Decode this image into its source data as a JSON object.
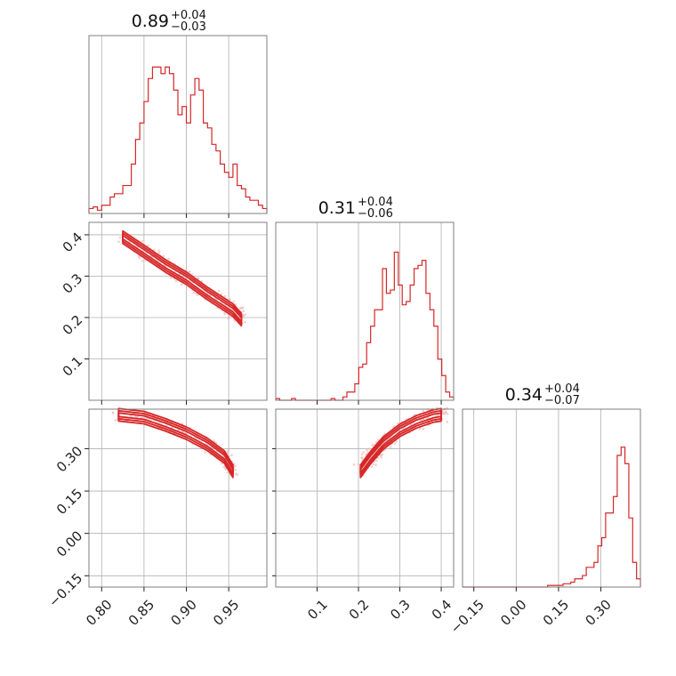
{
  "chart_data": {
    "type": "corner",
    "color": "#d62728",
    "parameters": [
      {
        "title": {
          "median": "0.89",
          "plus": "+0.04",
          "minus": "−0.03"
        },
        "range": [
          0.785,
          0.995
        ],
        "ticks": [
          {
            "v": 0.8,
            "label": "0.80"
          },
          {
            "v": 0.85,
            "label": "0.85"
          },
          {
            "v": 0.9,
            "label": "0.90"
          },
          {
            "v": 0.95,
            "label": "0.95"
          }
        ],
        "hist": [
          0.03,
          0.04,
          0.02,
          0.05,
          0.05,
          0.1,
          0.12,
          0.12,
          0.17,
          0.17,
          0.3,
          0.45,
          0.55,
          0.68,
          0.82,
          0.89,
          0.89,
          0.85,
          0.89,
          0.85,
          0.75,
          0.6,
          0.65,
          0.55,
          0.72,
          0.82,
          0.75,
          0.55,
          0.52,
          0.42,
          0.38,
          0.3,
          0.25,
          0.22,
          0.3,
          0.17,
          0.15,
          0.1,
          0.08,
          0.08,
          0.05,
          0.03
        ]
      },
      {
        "title": {
          "median": "0.31",
          "plus": "+0.04",
          "minus": "−0.06"
        },
        "range": [
          0.0,
          0.43
        ],
        "ticks": [
          {
            "v": 0.1,
            "label": "0.1"
          },
          {
            "v": 0.2,
            "label": "0.2"
          },
          {
            "v": 0.3,
            "label": "0.3"
          },
          {
            "v": 0.4,
            "label": "0.4"
          }
        ],
        "hist": [
          0.01,
          0.0,
          0.0,
          0.0,
          0.01,
          0.0,
          0.0,
          0.0,
          0.0,
          0.0,
          0.0,
          0.0,
          0.0,
          0.0,
          0.01,
          0.0,
          0.0,
          0.02,
          0.05,
          0.05,
          0.1,
          0.2,
          0.22,
          0.35,
          0.45,
          0.55,
          0.55,
          0.8,
          0.65,
          0.67,
          0.9,
          0.7,
          0.58,
          0.6,
          0.7,
          0.8,
          0.82,
          0.85,
          0.65,
          0.55,
          0.45,
          0.25,
          0.15,
          0.05,
          0.02
        ]
      },
      {
        "title": {
          "median": "0.34",
          "plus": "+0.04",
          "minus": "−0.07"
        },
        "range": [
          -0.19,
          0.44
        ],
        "ticks": [
          {
            "v": -0.15,
            "label": "−0.15"
          },
          {
            "v": 0.0,
            "label": "0.00"
          },
          {
            "v": 0.15,
            "label": "0.15"
          },
          {
            "v": 0.3,
            "label": "0.30"
          }
        ],
        "hist": [
          0.0,
          0.0,
          0.0,
          0.0,
          0.0,
          0.0,
          0.0,
          0.0,
          0.0,
          0.0,
          0.0,
          0.0,
          0.0,
          0.0,
          0.0,
          0.0,
          0.0,
          0.0,
          0.0,
          0.0,
          0.0,
          0.0,
          0.01,
          0.01,
          0.01,
          0.01,
          0.02,
          0.02,
          0.03,
          0.05,
          0.05,
          0.07,
          0.12,
          0.12,
          0.15,
          0.25,
          0.3,
          0.45,
          0.45,
          0.55,
          0.8,
          0.85,
          0.75,
          0.42,
          0.15,
          0.05
        ]
      }
    ],
    "contours": {
      "p1_p0": [
        {
          "x": 0.825,
          "y": 0.394
        },
        {
          "x": 0.85,
          "y": 0.36
        },
        {
          "x": 0.875,
          "y": 0.325
        },
        {
          "x": 0.9,
          "y": 0.295
        },
        {
          "x": 0.925,
          "y": 0.258
        },
        {
          "x": 0.955,
          "y": 0.218
        },
        {
          "x": 0.965,
          "y": 0.195
        }
      ],
      "p2_p0": [
        {
          "x": 0.82,
          "y": 0.42
        },
        {
          "x": 0.85,
          "y": 0.41
        },
        {
          "x": 0.875,
          "y": 0.385
        },
        {
          "x": 0.9,
          "y": 0.355
        },
        {
          "x": 0.925,
          "y": 0.315
        },
        {
          "x": 0.945,
          "y": 0.27
        },
        {
          "x": 0.955,
          "y": 0.22
        }
      ],
      "p2_p1": [
        {
          "x": 0.205,
          "y": 0.22
        },
        {
          "x": 0.23,
          "y": 0.27
        },
        {
          "x": 0.26,
          "y": 0.32
        },
        {
          "x": 0.3,
          "y": 0.365
        },
        {
          "x": 0.34,
          "y": 0.395
        },
        {
          "x": 0.38,
          "y": 0.415
        },
        {
          "x": 0.4,
          "y": 0.42
        }
      ]
    }
  }
}
